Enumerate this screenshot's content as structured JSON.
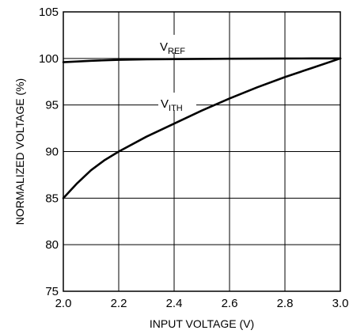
{
  "chart_data": {
    "type": "line",
    "title": "",
    "xlabel": "INPUT VOLTAGE (V)",
    "ylabel": "NORMALIZED VOLTAGE (%)",
    "xlim": [
      2.0,
      3.0
    ],
    "ylim": [
      75,
      105
    ],
    "x_ticks": [
      "2.0",
      "2.2",
      "2.4",
      "2.6",
      "2.8",
      "3.0"
    ],
    "y_ticks": [
      "75",
      "80",
      "85",
      "90",
      "95",
      "100",
      "105"
    ],
    "grid": true,
    "legend": "none",
    "series": [
      {
        "name": "VREF",
        "label_main": "V",
        "label_sub": "REF",
        "x": [
          2.0,
          2.1,
          2.2,
          2.3,
          2.4,
          2.5,
          2.6,
          2.7,
          2.8,
          2.9,
          3.0
        ],
        "values": [
          99.6,
          99.75,
          99.85,
          99.9,
          99.93,
          99.95,
          99.97,
          99.98,
          99.99,
          100.0,
          100.0
        ]
      },
      {
        "name": "VITH",
        "label_main": "V",
        "label_sub": "ITH",
        "x": [
          2.0,
          2.05,
          2.1,
          2.15,
          2.2,
          2.3,
          2.4,
          2.5,
          2.6,
          2.7,
          2.8,
          2.9,
          3.0
        ],
        "values": [
          85.0,
          86.6,
          88.0,
          89.1,
          90.0,
          91.6,
          93.0,
          94.4,
          95.7,
          96.9,
          98.0,
          99.0,
          100.0
        ]
      }
    ]
  }
}
